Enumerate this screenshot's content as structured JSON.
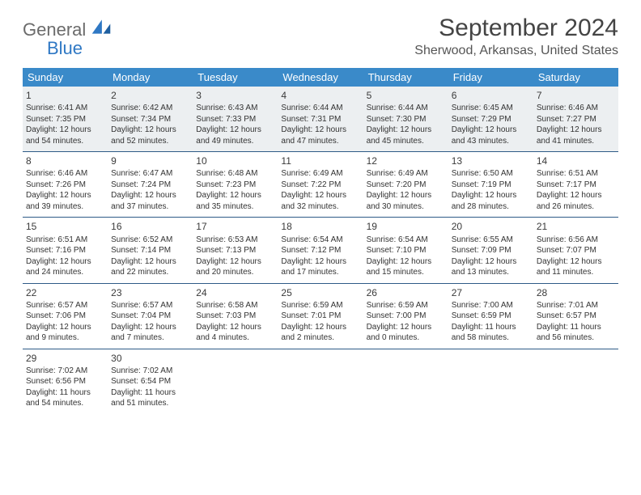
{
  "logo": {
    "general": "General",
    "blue": "Blue"
  },
  "title": "September 2024",
  "location": "Sherwood, Arkansas, United States",
  "colors": {
    "header_bg": "#3a8ac9",
    "header_text": "#ffffff",
    "week_border": "#2e5b87",
    "first_row_bg": "#eceff1",
    "title_color": "#444444",
    "location_color": "#555555",
    "logo_gray": "#6b6b6b",
    "logo_blue": "#2f78c4"
  },
  "day_names": [
    "Sunday",
    "Monday",
    "Tuesday",
    "Wednesday",
    "Thursday",
    "Friday",
    "Saturday"
  ],
  "weeks": [
    [
      {
        "n": "1",
        "sr": "6:41 AM",
        "ss": "7:35 PM",
        "dl": "12 hours and 54 minutes."
      },
      {
        "n": "2",
        "sr": "6:42 AM",
        "ss": "7:34 PM",
        "dl": "12 hours and 52 minutes."
      },
      {
        "n": "3",
        "sr": "6:43 AM",
        "ss": "7:33 PM",
        "dl": "12 hours and 49 minutes."
      },
      {
        "n": "4",
        "sr": "6:44 AM",
        "ss": "7:31 PM",
        "dl": "12 hours and 47 minutes."
      },
      {
        "n": "5",
        "sr": "6:44 AM",
        "ss": "7:30 PM",
        "dl": "12 hours and 45 minutes."
      },
      {
        "n": "6",
        "sr": "6:45 AM",
        "ss": "7:29 PM",
        "dl": "12 hours and 43 minutes."
      },
      {
        "n": "7",
        "sr": "6:46 AM",
        "ss": "7:27 PM",
        "dl": "12 hours and 41 minutes."
      }
    ],
    [
      {
        "n": "8",
        "sr": "6:46 AM",
        "ss": "7:26 PM",
        "dl": "12 hours and 39 minutes."
      },
      {
        "n": "9",
        "sr": "6:47 AM",
        "ss": "7:24 PM",
        "dl": "12 hours and 37 minutes."
      },
      {
        "n": "10",
        "sr": "6:48 AM",
        "ss": "7:23 PM",
        "dl": "12 hours and 35 minutes."
      },
      {
        "n": "11",
        "sr": "6:49 AM",
        "ss": "7:22 PM",
        "dl": "12 hours and 32 minutes."
      },
      {
        "n": "12",
        "sr": "6:49 AM",
        "ss": "7:20 PM",
        "dl": "12 hours and 30 minutes."
      },
      {
        "n": "13",
        "sr": "6:50 AM",
        "ss": "7:19 PM",
        "dl": "12 hours and 28 minutes."
      },
      {
        "n": "14",
        "sr": "6:51 AM",
        "ss": "7:17 PM",
        "dl": "12 hours and 26 minutes."
      }
    ],
    [
      {
        "n": "15",
        "sr": "6:51 AM",
        "ss": "7:16 PM",
        "dl": "12 hours and 24 minutes."
      },
      {
        "n": "16",
        "sr": "6:52 AM",
        "ss": "7:14 PM",
        "dl": "12 hours and 22 minutes."
      },
      {
        "n": "17",
        "sr": "6:53 AM",
        "ss": "7:13 PM",
        "dl": "12 hours and 20 minutes."
      },
      {
        "n": "18",
        "sr": "6:54 AM",
        "ss": "7:12 PM",
        "dl": "12 hours and 17 minutes."
      },
      {
        "n": "19",
        "sr": "6:54 AM",
        "ss": "7:10 PM",
        "dl": "12 hours and 15 minutes."
      },
      {
        "n": "20",
        "sr": "6:55 AM",
        "ss": "7:09 PM",
        "dl": "12 hours and 13 minutes."
      },
      {
        "n": "21",
        "sr": "6:56 AM",
        "ss": "7:07 PM",
        "dl": "12 hours and 11 minutes."
      }
    ],
    [
      {
        "n": "22",
        "sr": "6:57 AM",
        "ss": "7:06 PM",
        "dl": "12 hours and 9 minutes."
      },
      {
        "n": "23",
        "sr": "6:57 AM",
        "ss": "7:04 PM",
        "dl": "12 hours and 7 minutes."
      },
      {
        "n": "24",
        "sr": "6:58 AM",
        "ss": "7:03 PM",
        "dl": "12 hours and 4 minutes."
      },
      {
        "n": "25",
        "sr": "6:59 AM",
        "ss": "7:01 PM",
        "dl": "12 hours and 2 minutes."
      },
      {
        "n": "26",
        "sr": "6:59 AM",
        "ss": "7:00 PM",
        "dl": "12 hours and 0 minutes."
      },
      {
        "n": "27",
        "sr": "7:00 AM",
        "ss": "6:59 PM",
        "dl": "11 hours and 58 minutes."
      },
      {
        "n": "28",
        "sr": "7:01 AM",
        "ss": "6:57 PM",
        "dl": "11 hours and 56 minutes."
      }
    ],
    [
      {
        "n": "29",
        "sr": "7:02 AM",
        "ss": "6:56 PM",
        "dl": "11 hours and 54 minutes."
      },
      {
        "n": "30",
        "sr": "7:02 AM",
        "ss": "6:54 PM",
        "dl": "11 hours and 51 minutes."
      },
      null,
      null,
      null,
      null,
      null
    ]
  ],
  "labels": {
    "sunrise": "Sunrise:",
    "sunset": "Sunset:",
    "daylight": "Daylight:"
  }
}
